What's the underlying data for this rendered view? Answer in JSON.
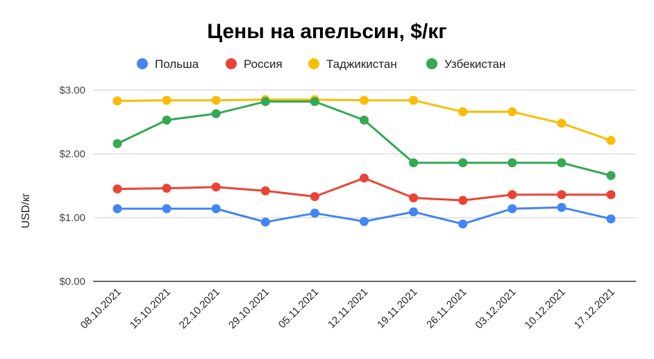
{
  "chart_data": {
    "type": "line",
    "title": "Цены на апельсин, $/кг",
    "xlabel": "",
    "ylabel": "USD/кг",
    "ylim": [
      0,
      3
    ],
    "yticks": [
      0,
      1,
      2,
      3
    ],
    "ytick_labels": [
      "$0.00",
      "$1.00",
      "$2.00",
      "$3.00"
    ],
    "grid": true,
    "legend_position": "top",
    "categories": [
      "08.10.2021",
      "15.10.2021",
      "22.10.2021",
      "29.10.2021",
      "05.11.2021",
      "12.11.2021",
      "19.11.2021",
      "26.11.2021",
      "03.12.2021",
      "10.12.2021",
      "17.12.2021"
    ],
    "series": [
      {
        "name": "Польша",
        "color": "#4285F4",
        "values": [
          1.14,
          1.14,
          1.14,
          0.93,
          1.07,
          0.94,
          1.09,
          0.9,
          1.14,
          1.16,
          0.98
        ]
      },
      {
        "name": "Россия",
        "color": "#EA4335",
        "values": [
          1.45,
          1.46,
          1.48,
          1.42,
          1.33,
          1.62,
          1.31,
          1.27,
          1.36,
          1.36,
          1.36
        ]
      },
      {
        "name": "Таджикистан",
        "color": "#FBBC04",
        "values": [
          2.83,
          2.84,
          2.84,
          2.85,
          2.85,
          2.84,
          2.84,
          2.66,
          2.66,
          2.48,
          2.21
        ]
      },
      {
        "name": "Узбекистан",
        "color": "#34A853",
        "values": [
          2.16,
          2.53,
          2.63,
          2.82,
          2.82,
          2.53,
          1.86,
          1.86,
          1.86,
          1.86,
          1.66
        ]
      }
    ]
  }
}
